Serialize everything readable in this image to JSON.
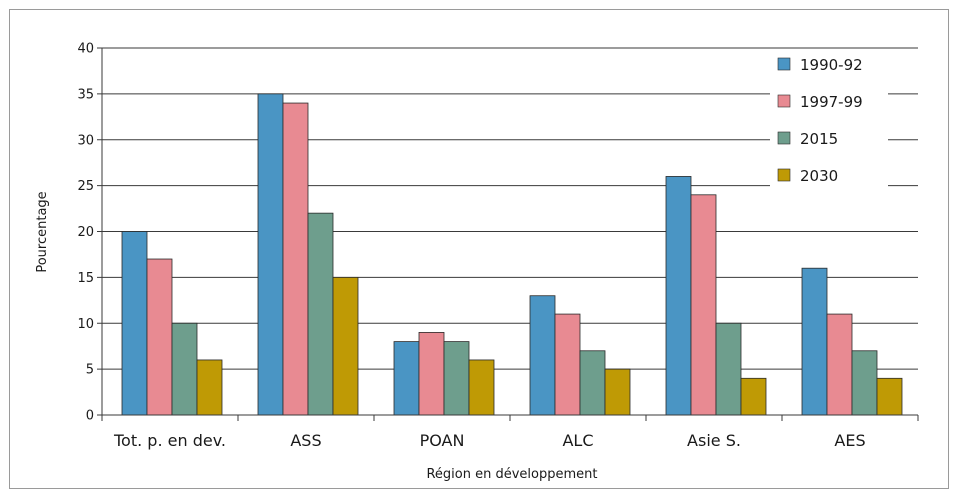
{
  "chart_data": {
    "type": "bar",
    "title": "",
    "xlabel": "Région en développement",
    "ylabel": "Pourcentage",
    "ylim": [
      0,
      40
    ],
    "yticks": [
      "0",
      "5",
      "10",
      "15",
      "20",
      "25",
      "30",
      "35",
      "40"
    ],
    "categories": [
      "Tot. p. en dev.",
      "ASS",
      "POAN",
      "ALC",
      "Asie S.",
      "AES"
    ],
    "series": [
      {
        "name": "1990-92",
        "color": "#4a95c4",
        "values": [
          20,
          35,
          8,
          13,
          26,
          16
        ]
      },
      {
        "name": "1997-99",
        "color": "#e88a92",
        "values": [
          17,
          34,
          9,
          11,
          24,
          11
        ]
      },
      {
        "name": "2015",
        "color": "#6e9e8d",
        "values": [
          10,
          22,
          8,
          7,
          10,
          7
        ]
      },
      {
        "name": "2030",
        "color": "#bf9a05",
        "values": [
          6,
          15,
          6,
          5,
          4,
          4
        ]
      }
    ],
    "grid": true,
    "legend_position": "top-right"
  }
}
